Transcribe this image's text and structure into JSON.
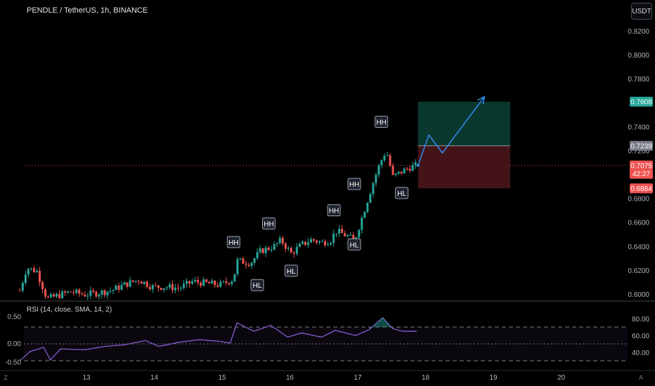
{
  "header": {
    "title": "PENDLE / TetherUS, 1h, BINANCE"
  },
  "currency_button": "USDT",
  "rsi": {
    "label": "RSI (14, close, SMA, 14, 2)",
    "left_ticks": [
      "0.50",
      "0.00",
      "-0.50"
    ],
    "right_ticks": [
      "80.00",
      "60.00",
      "40.00"
    ]
  },
  "bottom_bar": {
    "left_icon_label": "Z",
    "right_icon_label": "A"
  },
  "colors": {
    "up": "#26a69a",
    "down": "#ef5350",
    "profit": "#0b3d33",
    "loss": "#4a1519",
    "arrow": "#2f8cf1",
    "rsi_line": "#7e57c2"
  },
  "chart_data": {
    "type": "candlestick",
    "symbol": "PENDLE / TetherUS",
    "interval": "1h",
    "exchange": "BINANCE",
    "y_ticks": [
      "0.8200",
      "0.8000",
      "0.7800",
      "0.7400",
      "0.7200",
      "0.6800",
      "0.6600",
      "0.6400",
      "0.6200",
      "0.6000"
    ],
    "x_ticks": [
      "13",
      "14",
      "15",
      "16",
      "17",
      "18",
      "19",
      "20"
    ],
    "price_labels": [
      {
        "value": "0.7608",
        "color": "#26a69a"
      },
      {
        "value": "0.7239",
        "color": "#787b86"
      },
      {
        "value": "0.7075",
        "color": "#ef5350",
        "countdown": "42:27"
      },
      {
        "value": "0.6884",
        "color": "#ef5350"
      }
    ],
    "position": {
      "entry": 0.7239,
      "target": 0.7608,
      "stop": 0.6884
    },
    "annotations": [
      {
        "text": "HH",
        "x": 15.2,
        "price": 0.6435
      },
      {
        "text": "HL",
        "x": 15.55,
        "price": 0.6075
      },
      {
        "text": "HH",
        "x": 15.72,
        "price": 0.659
      },
      {
        "text": "HL",
        "x": 16.05,
        "price": 0.6195
      },
      {
        "text": "HH",
        "x": 16.68,
        "price": 0.67
      },
      {
        "text": "HL",
        "x": 16.98,
        "price": 0.6415
      },
      {
        "text": "HH",
        "x": 16.98,
        "price": 0.692
      },
      {
        "text": "HL",
        "x": 17.68,
        "price": 0.6845
      },
      {
        "text": "HH",
        "x": 17.38,
        "price": 0.744
      }
    ],
    "price_path": [
      [
        12.05,
        0.603
      ],
      [
        12.15,
        0.622
      ],
      [
        12.3,
        0.619
      ],
      [
        12.45,
        0.596
      ],
      [
        12.6,
        0.5985
      ],
      [
        12.8,
        0.602
      ],
      [
        13.0,
        0.5995
      ],
      [
        13.2,
        0.601
      ],
      [
        13.4,
        0.603
      ],
      [
        13.6,
        0.608
      ],
      [
        13.8,
        0.612
      ],
      [
        14.0,
        0.606
      ],
      [
        14.2,
        0.606
      ],
      [
        14.4,
        0.605
      ],
      [
        14.6,
        0.6105
      ],
      [
        14.8,
        0.609
      ],
      [
        15.0,
        0.6075
      ],
      [
        15.2,
        0.6125
      ],
      [
        15.25,
        0.628
      ],
      [
        15.45,
        0.626
      ],
      [
        15.6,
        0.636
      ],
      [
        15.8,
        0.64
      ],
      [
        15.9,
        0.645
      ],
      [
        16.05,
        0.634
      ],
      [
        16.2,
        0.641
      ],
      [
        16.35,
        0.6455
      ],
      [
        16.5,
        0.643
      ],
      [
        16.65,
        0.6455
      ],
      [
        16.7,
        0.653
      ],
      [
        16.9,
        0.648
      ],
      [
        16.98,
        0.644
      ],
      [
        17.1,
        0.665
      ],
      [
        17.25,
        0.692
      ],
      [
        17.35,
        0.708
      ],
      [
        17.45,
        0.72
      ],
      [
        17.55,
        0.698
      ],
      [
        17.7,
        0.703
      ],
      [
        17.8,
        0.706
      ],
      [
        17.9,
        0.7075
      ]
    ],
    "projection_path": [
      [
        17.92,
        0.7075
      ],
      [
        18.08,
        0.733
      ],
      [
        18.28,
        0.718
      ],
      [
        18.9,
        0.765
      ]
    ],
    "rsi_path": [
      [
        12.05,
        30
      ],
      [
        12.2,
        41
      ],
      [
        12.4,
        46
      ],
      [
        12.5,
        31
      ],
      [
        12.65,
        44
      ],
      [
        13.0,
        43
      ],
      [
        13.3,
        47
      ],
      [
        13.6,
        49
      ],
      [
        13.9,
        54
      ],
      [
        14.1,
        47
      ],
      [
        14.4,
        52
      ],
      [
        14.7,
        55
      ],
      [
        15.0,
        53
      ],
      [
        15.15,
        51
      ],
      [
        15.25,
        75
      ],
      [
        15.5,
        65
      ],
      [
        15.75,
        72
      ],
      [
        16.0,
        58
      ],
      [
        16.2,
        63
      ],
      [
        16.5,
        58
      ],
      [
        16.7,
        66
      ],
      [
        17.0,
        60
      ],
      [
        17.2,
        67
      ],
      [
        17.4,
        81
      ],
      [
        17.55,
        68
      ],
      [
        17.7,
        65
      ],
      [
        17.9,
        65
      ]
    ]
  }
}
